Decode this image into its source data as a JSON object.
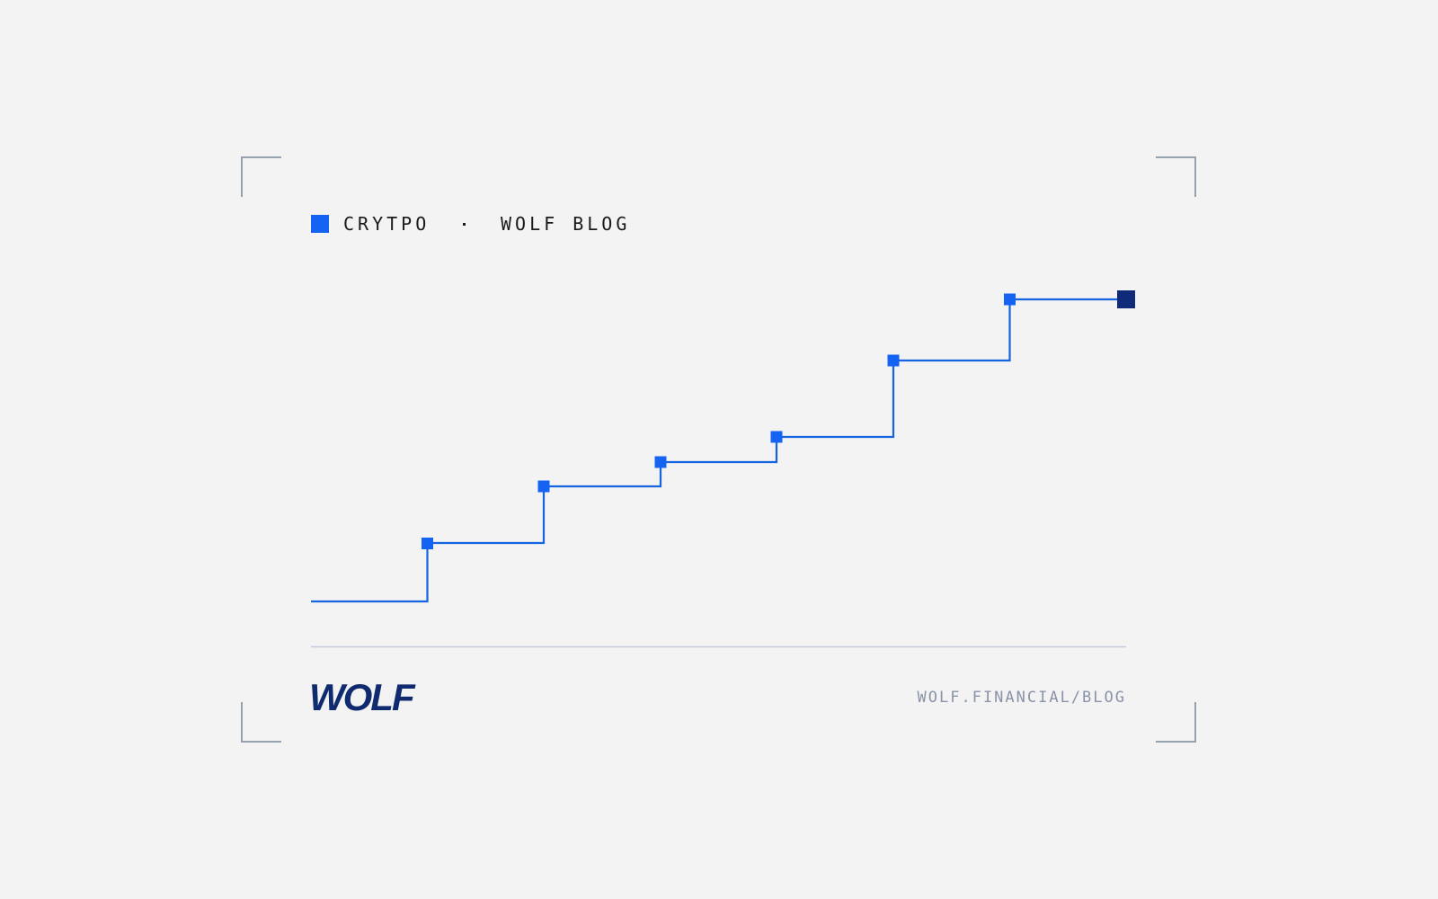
{
  "header": {
    "category": "CRYTPO",
    "blog": "WOLF BLOG"
  },
  "footer": {
    "logo": "WOLF",
    "url": "WOLF.FINANCIAL/BLOG"
  }
}
